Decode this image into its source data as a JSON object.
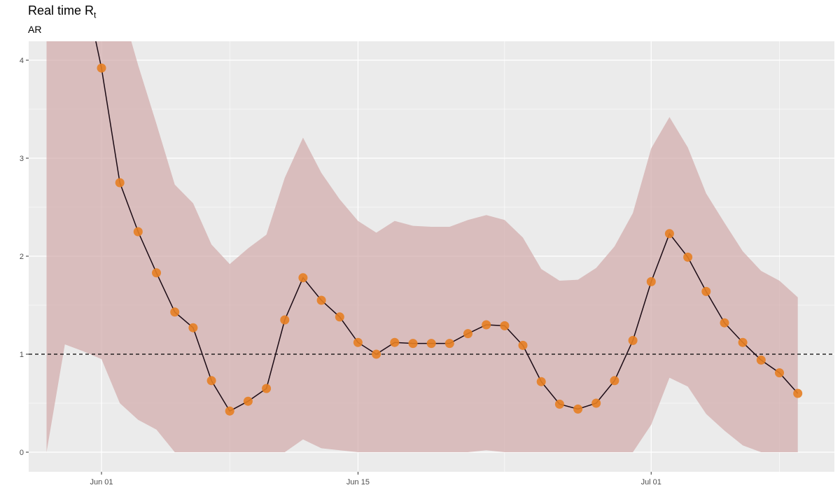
{
  "header": {
    "title": "Real time R",
    "title_subscript": "t",
    "subtitle": "AR"
  },
  "colors": {
    "panel_background": "#ebebeb",
    "grid_major": "#ffffff",
    "ribbon": "#d2aaaa",
    "ribbon_opacity": 0.7,
    "line": "#1a0a14",
    "point": "#e67e22",
    "reference_line": "#000000"
  },
  "chart_data": {
    "type": "line",
    "title": "Real time R",
    "subtitle": "AR",
    "xlabel": "",
    "ylabel": "",
    "x_type": "date",
    "xlim": [
      "2020-05-27",
      "2020-07-10"
    ],
    "ylim": [
      -0.2,
      4.2
    ],
    "x_ticks": [
      {
        "date": "2020-06-01",
        "label": "Jun 01"
      },
      {
        "date": "2020-06-15",
        "label": "Jun 15"
      },
      {
        "date": "2020-07-01",
        "label": "Jul 01"
      }
    ],
    "y_ticks": [
      0,
      1,
      2,
      3,
      4
    ],
    "grid": true,
    "reference_line": {
      "y": 1,
      "style": "dashed"
    },
    "series": [
      {
        "kind": "point_line",
        "points": [
          {
            "x": "2020-05-31",
            "y": 4.8
          },
          {
            "x": "2020-06-01",
            "y": 3.92
          },
          {
            "x": "2020-06-02",
            "y": 2.75
          },
          {
            "x": "2020-06-03",
            "y": 2.25
          },
          {
            "x": "2020-06-04",
            "y": 1.83
          },
          {
            "x": "2020-06-05",
            "y": 1.43
          },
          {
            "x": "2020-06-06",
            "y": 1.27
          },
          {
            "x": "2020-06-07",
            "y": 0.73
          },
          {
            "x": "2020-06-08",
            "y": 0.42
          },
          {
            "x": "2020-06-09",
            "y": 0.52
          },
          {
            "x": "2020-06-10",
            "y": 0.65
          },
          {
            "x": "2020-06-11",
            "y": 1.35
          },
          {
            "x": "2020-06-12",
            "y": 1.78
          },
          {
            "x": "2020-06-13",
            "y": 1.55
          },
          {
            "x": "2020-06-14",
            "y": 1.38
          },
          {
            "x": "2020-06-15",
            "y": 1.12
          },
          {
            "x": "2020-06-16",
            "y": 1.0
          },
          {
            "x": "2020-06-17",
            "y": 1.12
          },
          {
            "x": "2020-06-18",
            "y": 1.11
          },
          {
            "x": "2020-06-19",
            "y": 1.11
          },
          {
            "x": "2020-06-20",
            "y": 1.11
          },
          {
            "x": "2020-06-21",
            "y": 1.21
          },
          {
            "x": "2020-06-22",
            "y": 1.3
          },
          {
            "x": "2020-06-23",
            "y": 1.29
          },
          {
            "x": "2020-06-24",
            "y": 1.09
          },
          {
            "x": "2020-06-25",
            "y": 0.72
          },
          {
            "x": "2020-06-26",
            "y": 0.49
          },
          {
            "x": "2020-06-27",
            "y": 0.44
          },
          {
            "x": "2020-06-28",
            "y": 0.5
          },
          {
            "x": "2020-06-29",
            "y": 0.73
          },
          {
            "x": "2020-06-30",
            "y": 1.14
          },
          {
            "x": "2020-07-01",
            "y": 1.74
          },
          {
            "x": "2020-07-02",
            "y": 2.23
          },
          {
            "x": "2020-07-03",
            "y": 1.99
          },
          {
            "x": "2020-07-04",
            "y": 1.64
          },
          {
            "x": "2020-07-05",
            "y": 1.32
          },
          {
            "x": "2020-07-06",
            "y": 1.12
          },
          {
            "x": "2020-07-07",
            "y": 0.94
          },
          {
            "x": "2020-07-08",
            "y": 0.81
          },
          {
            "x": "2020-07-09",
            "y": 0.6
          }
        ]
      }
    ],
    "band": {
      "kind": "ribbon",
      "x": [
        "2020-05-29",
        "2020-05-30",
        "2020-05-31",
        "2020-06-01",
        "2020-06-02",
        "2020-06-03",
        "2020-06-04",
        "2020-06-05",
        "2020-06-06",
        "2020-06-07",
        "2020-06-08",
        "2020-06-09",
        "2020-06-10",
        "2020-06-11",
        "2020-06-12",
        "2020-06-13",
        "2020-06-14",
        "2020-06-15",
        "2020-06-16",
        "2020-06-17",
        "2020-06-18",
        "2020-06-19",
        "2020-06-20",
        "2020-06-21",
        "2020-06-22",
        "2020-06-23",
        "2020-06-24",
        "2020-06-25",
        "2020-06-26",
        "2020-06-27",
        "2020-06-28",
        "2020-06-29",
        "2020-06-30",
        "2020-07-01",
        "2020-07-02",
        "2020-07-03",
        "2020-07-04",
        "2020-07-05",
        "2020-07-06",
        "2020-07-07",
        "2020-07-08",
        "2020-07-09"
      ],
      "upper": [
        4.6,
        4.6,
        4.6,
        4.6,
        4.6,
        3.95,
        3.35,
        2.73,
        2.54,
        2.12,
        1.92,
        2.08,
        2.22,
        2.8,
        3.21,
        2.85,
        2.58,
        2.36,
        2.24,
        2.36,
        2.31,
        2.3,
        2.3,
        2.37,
        2.42,
        2.37,
        2.19,
        1.87,
        1.75,
        1.76,
        1.88,
        2.1,
        2.44,
        3.1,
        3.42,
        3.11,
        2.64,
        2.34,
        2.05,
        1.85,
        1.75,
        1.58
      ],
      "lower": [
        0.0,
        1.1,
        1.03,
        0.95,
        0.5,
        0.33,
        0.23,
        0.0,
        0.0,
        0.0,
        0.0,
        0.0,
        0.0,
        0.0,
        0.13,
        0.04,
        0.02,
        0.0,
        0.0,
        0.0,
        0.0,
        0.0,
        0.0,
        0.0,
        0.02,
        0.0,
        0.0,
        0.0,
        0.0,
        0.0,
        0.0,
        0.0,
        0.0,
        0.28,
        0.76,
        0.67,
        0.39,
        0.22,
        0.07,
        0.0,
        0.0,
        0.0
      ]
    }
  }
}
